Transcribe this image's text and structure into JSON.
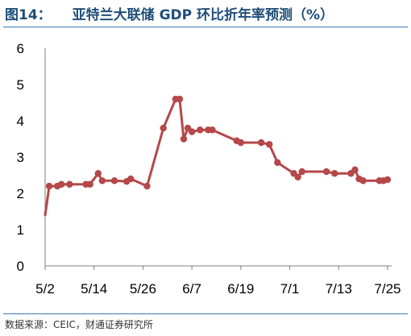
{
  "title": {
    "figure_label": "图14：",
    "text": "亚特兰大联储 GDP 环比折年率预测（%）"
  },
  "source": "数据来源：CEIC，财通证券研究所",
  "colors": {
    "line": "#b5484a",
    "axis": "#7f7f7f",
    "rule": "#3a78b5"
  },
  "chart_data": {
    "type": "line",
    "title": "亚特兰大联储 GDP 环比折年率预测（%）",
    "xlabel": "",
    "ylabel": "",
    "ylim": [
      0,
      6
    ],
    "yticks": [
      "0",
      "1",
      "2",
      "3",
      "4",
      "5",
      "6"
    ],
    "xlim": [
      0,
      85
    ],
    "xticks": [
      {
        "x": 0,
        "label": "5/2"
      },
      {
        "x": 12,
        "label": "5/14"
      },
      {
        "x": 24,
        "label": "5/26"
      },
      {
        "x": 36,
        "label": "6/7"
      },
      {
        "x": 48,
        "label": "6/19"
      },
      {
        "x": 60,
        "label": "7/1"
      },
      {
        "x": 72,
        "label": "7/13"
      },
      {
        "x": 84,
        "label": "7/25"
      }
    ],
    "grid": false,
    "legend": "none",
    "series": [
      {
        "values": [
          {
            "x": 0,
            "y": 1.4,
            "marker": false
          },
          {
            "x": 1,
            "y": 2.2
          },
          {
            "x": 3,
            "y": 2.2
          },
          {
            "x": 4,
            "y": 2.25
          },
          {
            "x": 6,
            "y": 2.25
          },
          {
            "x": 10,
            "y": 2.25
          },
          {
            "x": 11,
            "y": 2.25
          },
          {
            "x": 13,
            "y": 2.55
          },
          {
            "x": 14,
            "y": 2.35
          },
          {
            "x": 17,
            "y": 2.35
          },
          {
            "x": 20,
            "y": 2.33
          },
          {
            "x": 21,
            "y": 2.4
          },
          {
            "x": 25,
            "y": 2.2
          },
          {
            "x": 29,
            "y": 3.8
          },
          {
            "x": 32,
            "y": 4.6
          },
          {
            "x": 33,
            "y": 4.6
          },
          {
            "x": 34,
            "y": 3.5
          },
          {
            "x": 35,
            "y": 3.8
          },
          {
            "x": 36,
            "y": 3.7
          },
          {
            "x": 38,
            "y": 3.75
          },
          {
            "x": 40,
            "y": 3.75
          },
          {
            "x": 41,
            "y": 3.75
          },
          {
            "x": 47,
            "y": 3.45
          },
          {
            "x": 48,
            "y": 3.4
          },
          {
            "x": 53,
            "y": 3.4
          },
          {
            "x": 55,
            "y": 3.35
          },
          {
            "x": 57,
            "y": 2.85
          },
          {
            "x": 61,
            "y": 2.55
          },
          {
            "x": 62,
            "y": 2.45
          },
          {
            "x": 63,
            "y": 2.6
          },
          {
            "x": 69,
            "y": 2.6
          },
          {
            "x": 71,
            "y": 2.55
          },
          {
            "x": 75,
            "y": 2.55
          },
          {
            "x": 76,
            "y": 2.65
          },
          {
            "x": 77,
            "y": 2.4
          },
          {
            "x": 78,
            "y": 2.35
          },
          {
            "x": 82,
            "y": 2.35
          },
          {
            "x": 83,
            "y": 2.35
          },
          {
            "x": 84,
            "y": 2.38
          }
        ]
      }
    ]
  }
}
